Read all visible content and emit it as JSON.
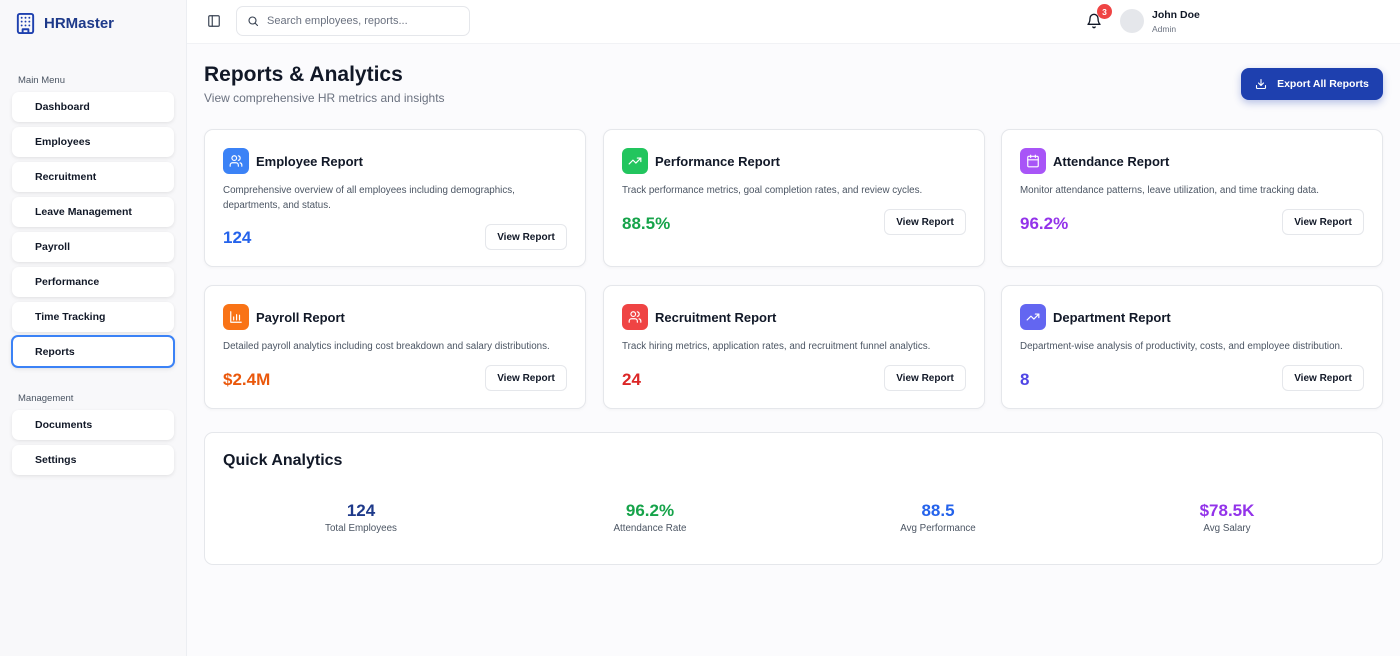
{
  "brand": {
    "name": "HRMaster"
  },
  "sidebar": {
    "main_label": "Main Menu",
    "main_items": [
      {
        "label": "Dashboard"
      },
      {
        "label": "Employees"
      },
      {
        "label": "Recruitment"
      },
      {
        "label": "Leave Management"
      },
      {
        "label": "Payroll"
      },
      {
        "label": "Performance"
      },
      {
        "label": "Time Tracking"
      },
      {
        "label": "Reports",
        "active": true
      }
    ],
    "management_label": "Management",
    "management_items": [
      {
        "label": "Documents"
      },
      {
        "label": "Settings"
      }
    ]
  },
  "header": {
    "search_placeholder": "Search employees, reports...",
    "notifications_count": "3",
    "user_name": "John Doe",
    "user_role": "Admin"
  },
  "page": {
    "title": "Reports & Analytics",
    "subtitle": "View comprehensive HR metrics and insights",
    "export_label": "Export All Reports"
  },
  "reports": [
    {
      "title": "Employee Report",
      "description": "Comprehensive overview of all employees including demographics, departments, and status.",
      "value": "124",
      "button": "View Report",
      "icon": "users-icon",
      "icon_color": "#3b82f6",
      "value_color": "#2563eb"
    },
    {
      "title": "Performance Report",
      "description": "Track performance metrics, goal completion rates, and review cycles.",
      "value": "88.5%",
      "button": "View Report",
      "icon": "trending-up-icon",
      "icon_color": "#22c55e",
      "value_color": "#16a34a"
    },
    {
      "title": "Attendance Report",
      "description": "Monitor attendance patterns, leave utilization, and time tracking data.",
      "value": "96.2%",
      "button": "View Report",
      "icon": "calendar-icon",
      "icon_color": "#a855f7",
      "value_color": "#9333ea"
    },
    {
      "title": "Payroll Report",
      "description": "Detailed payroll analytics including cost breakdown and salary distributions.",
      "value": "$2.4M",
      "button": "View Report",
      "icon": "bar-chart-icon",
      "icon_color": "#f97316",
      "value_color": "#ea580c"
    },
    {
      "title": "Recruitment Report",
      "description": "Track hiring metrics, application rates, and recruitment funnel analytics.",
      "value": "24",
      "button": "View Report",
      "icon": "users-icon",
      "icon_color": "#ef4444",
      "value_color": "#dc2626"
    },
    {
      "title": "Department Report",
      "description": "Department-wise analysis of productivity, costs, and employee distribution.",
      "value": "8",
      "button": "View Report",
      "icon": "trending-up-icon",
      "icon_color": "#6366f1",
      "value_color": "#4f46e5"
    }
  ],
  "quick_analytics": {
    "title": "Quick Analytics",
    "stats": [
      {
        "value": "124",
        "label": "Total Employees",
        "color": "#1e3a8a"
      },
      {
        "value": "96.2%",
        "label": "Attendance Rate",
        "color": "#16a34a"
      },
      {
        "value": "88.5",
        "label": "Avg Performance",
        "color": "#2563eb"
      },
      {
        "value": "$78.5K",
        "label": "Avg Salary",
        "color": "#9333ea"
      }
    ]
  }
}
